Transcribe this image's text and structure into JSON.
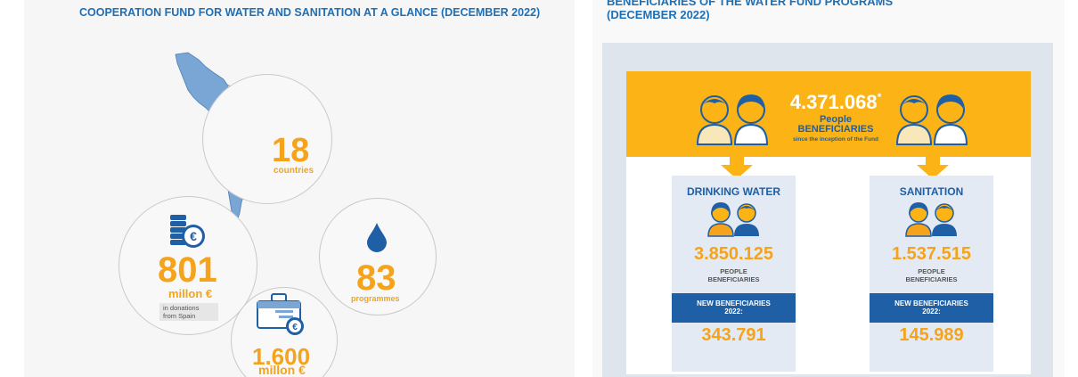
{
  "left_panel": {
    "title": "COOPERATION FUND FOR WATER AND SANITATION AT A GLANCE (DECEMBER 2022)",
    "countries": {
      "value": "18",
      "label": "countries"
    },
    "donations": {
      "value": "801",
      "unit": "millon €",
      "note_line1": "in donations",
      "note_line2": "from Spain"
    },
    "programmes": {
      "value": "83",
      "label": "programmes"
    },
    "budget": {
      "value": "1.600",
      "unit": "millon €"
    }
  },
  "right_panel": {
    "title_line1": "BENEFICIARIES OF THE WATER FUND PROGRAMS",
    "title_line2": "(DECEMBER 2022)",
    "total": {
      "value": "4.371.068",
      "asterisk": "*",
      "label_line1": "People",
      "label_line2": "BENEFICIARIES",
      "label_line3": "since the inception of the Fund"
    },
    "cards": [
      {
        "title": "DRINKING WATER",
        "value": "3.850.125",
        "label_line1": "PEOPLE",
        "label_line2": "BENEFICIARIES",
        "new_line1": "NEW BENEFICIARIES",
        "new_line2": "2022:",
        "new_value": "343.791"
      },
      {
        "title": "SANITATION",
        "value": "1.537.515",
        "label_line1": "PEOPLE",
        "label_line2": "BENEFICIARIES",
        "new_line1": "NEW BENEFICIARIES",
        "new_line2": "2022:",
        "new_value": "145.989"
      }
    ]
  },
  "colors": {
    "accent_orange": "#f5a31a",
    "band_orange": "#fcb316",
    "brand_blue": "#1f5fa5",
    "map_blue": "#7aa6d6"
  },
  "icons": [
    "latin-america-map-icon",
    "coin-stack-euro-icon",
    "water-drop-icon",
    "briefcase-euro-icon",
    "people-pair-icon",
    "down-arrow-icon"
  ]
}
